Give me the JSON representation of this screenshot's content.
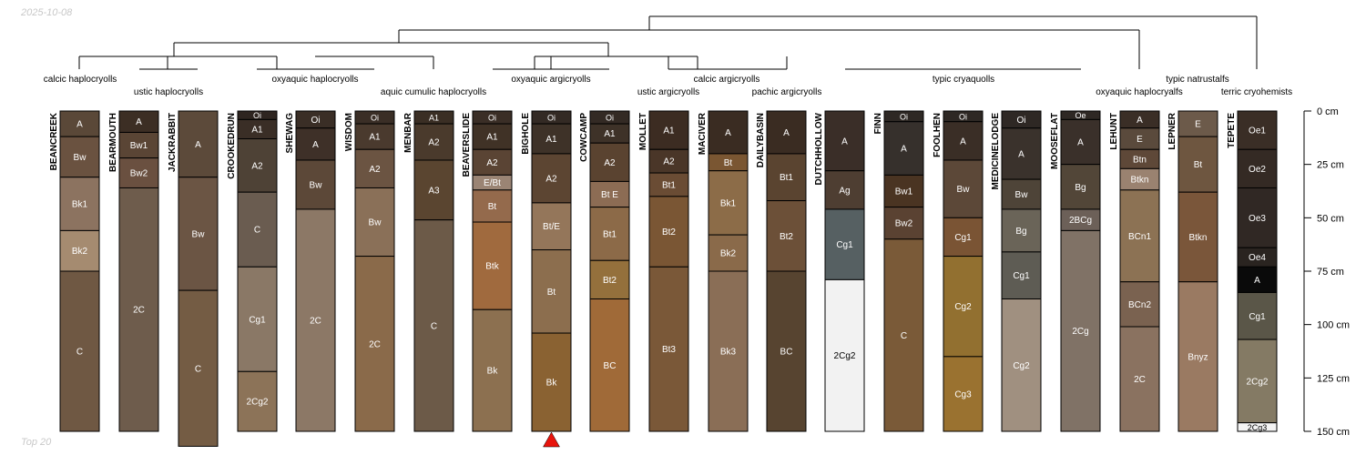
{
  "date_label": "2025-10-08",
  "footer_label": "Top 20",
  "chart_data": {
    "type": "soil-profile-sketch with dendrogram",
    "depth_axis": {
      "unit": "cm",
      "ticks": [
        0,
        25,
        50,
        75,
        100,
        125,
        150
      ],
      "tick_labels": [
        "0 cm",
        "25 cm",
        "50 cm",
        "75 cm",
        "100 cm",
        "125 cm",
        "150 cm"
      ],
      "range": [
        0,
        150
      ]
    },
    "groups": [
      {
        "label": "calcic haplocryolls"
      },
      {
        "label": "ustic haplocryolls"
      },
      {
        "label": "oxyaquic haplocryolls"
      },
      {
        "label": "aquic cumulic haplocryolls"
      },
      {
        "label": "oxyaquic argicryolls"
      },
      {
        "label": "ustic argicryolls"
      },
      {
        "label": "calcic argicryolls"
      },
      {
        "label": "pachic argicryolls"
      },
      {
        "label": "typic cryaquolls"
      },
      {
        "label": "oxyaquic haplocryalfs"
      },
      {
        "label": "typic natrustalfs"
      },
      {
        "label": "terric cryohemists"
      }
    ],
    "profiles": [
      {
        "name": "BEANCREEK",
        "horizons": [
          {
            "name": "A",
            "top": 0,
            "bottom": 12,
            "color": "#5a4838"
          },
          {
            "name": "Bw",
            "top": 12,
            "bottom": 31,
            "color": "#6a5240"
          },
          {
            "name": "Bk1",
            "top": 31,
            "bottom": 56,
            "color": "#8c7360"
          },
          {
            "name": "Bk2",
            "top": 56,
            "bottom": 75,
            "color": "#a58b70"
          },
          {
            "name": "C",
            "top": 75,
            "bottom": 150,
            "color": "#6f5843"
          }
        ]
      },
      {
        "name": "BEARMOUTH",
        "horizons": [
          {
            "name": "A",
            "top": 0,
            "bottom": 10,
            "color": "#3c2e24"
          },
          {
            "name": "Bw1",
            "top": 10,
            "bottom": 22,
            "color": "#5a4535"
          },
          {
            "name": "Bw2",
            "top": 22,
            "bottom": 36,
            "color": "#6a5040"
          },
          {
            "name": "2C",
            "top": 36,
            "bottom": 150,
            "color": "#6e5c4c"
          }
        ]
      },
      {
        "name": "JACKRABBIT",
        "horizons": [
          {
            "name": "A",
            "top": 0,
            "bottom": 31,
            "color": "#5c4a3a"
          },
          {
            "name": "Bw",
            "top": 31,
            "bottom": 84,
            "color": "#6b5544"
          },
          {
            "name": "C",
            "top": 84,
            "bottom": 157,
            "color": "#745c44"
          }
        ]
      },
      {
        "name": "CROOKEDRUN",
        "horizons": [
          {
            "name": "Oi",
            "top": 0,
            "bottom": 4,
            "color": "#2e2520"
          },
          {
            "name": "A1",
            "top": 4,
            "bottom": 13,
            "color": "#3a2e26"
          },
          {
            "name": "A2",
            "top": 13,
            "bottom": 38,
            "color": "#4e4236"
          },
          {
            "name": "C",
            "top": 38,
            "bottom": 73,
            "color": "#6a5c50"
          },
          {
            "name": "Cg1",
            "top": 73,
            "bottom": 122,
            "color": "#8a7866"
          },
          {
            "name": "2Cg2",
            "top": 122,
            "bottom": 150,
            "color": "#8c7358"
          }
        ]
      },
      {
        "name": "SHEWAG",
        "horizons": [
          {
            "name": "Oi",
            "top": 0,
            "bottom": 8,
            "color": "#3a2e26"
          },
          {
            "name": "A",
            "top": 8,
            "bottom": 23,
            "color": "#3e3028"
          },
          {
            "name": "Bw",
            "top": 23,
            "bottom": 46,
            "color": "#5c4838"
          },
          {
            "name": "2C",
            "top": 46,
            "bottom": 150,
            "color": "#8c7866"
          }
        ]
      },
      {
        "name": "WISDOM",
        "horizons": [
          {
            "name": "Oi",
            "top": 0,
            "bottom": 6,
            "color": "#3a2e26"
          },
          {
            "name": "A1",
            "top": 6,
            "bottom": 18,
            "color": "#4a3a2e"
          },
          {
            "name": "A2",
            "top": 18,
            "bottom": 36,
            "color": "#6b5442"
          },
          {
            "name": "Bw",
            "top": 36,
            "bottom": 68,
            "color": "#8a7058"
          },
          {
            "name": "2C",
            "top": 68,
            "bottom": 150,
            "color": "#8a6a4a"
          }
        ]
      },
      {
        "name": "MENBAR",
        "horizons": [
          {
            "name": "A1",
            "top": 0,
            "bottom": 6,
            "color": "#3a2e24"
          },
          {
            "name": "A2",
            "top": 6,
            "bottom": 23,
            "color": "#4a3a2c"
          },
          {
            "name": "A3",
            "top": 23,
            "bottom": 51,
            "color": "#5a4530"
          },
          {
            "name": "C",
            "top": 51,
            "bottom": 150,
            "color": "#6c5a48"
          }
        ]
      },
      {
        "name": "BEAVERSLIDE",
        "horizons": [
          {
            "name": "Oi",
            "top": 0,
            "bottom": 6,
            "color": "#3a2e26"
          },
          {
            "name": "A1",
            "top": 6,
            "bottom": 18,
            "color": "#403226"
          },
          {
            "name": "A2",
            "top": 18,
            "bottom": 30,
            "color": "#5a4434"
          },
          {
            "name": "E/Bt",
            "top": 30,
            "bottom": 37,
            "color": "#9a8474"
          },
          {
            "name": "Bt",
            "top": 37,
            "bottom": 52,
            "color": "#946a4c"
          },
          {
            "name": "Btk",
            "top": 52,
            "bottom": 93,
            "color": "#a06a3e"
          },
          {
            "name": "Bk",
            "top": 93,
            "bottom": 150,
            "color": "#8c7050"
          }
        ]
      },
      {
        "name": "BIGHOLE",
        "horizons": [
          {
            "name": "Oi",
            "top": 0,
            "bottom": 6,
            "color": "#332a24"
          },
          {
            "name": "A1",
            "top": 6,
            "bottom": 20,
            "color": "#3e3228"
          },
          {
            "name": "A2",
            "top": 20,
            "bottom": 43,
            "color": "#5c4532"
          },
          {
            "name": "Bt/E",
            "top": 43,
            "bottom": 65,
            "color": "#94765a"
          },
          {
            "name": "Bt",
            "top": 65,
            "bottom": 104,
            "color": "#8c6e4e"
          },
          {
            "name": "Bk",
            "top": 104,
            "bottom": 150,
            "color": "#8a6232"
          }
        ]
      },
      {
        "name": "COWCAMP",
        "horizons": [
          {
            "name": "Oi",
            "top": 0,
            "bottom": 6,
            "color": "#332a24"
          },
          {
            "name": "A1",
            "top": 6,
            "bottom": 15,
            "color": "#3e3228"
          },
          {
            "name": "A2",
            "top": 15,
            "bottom": 33,
            "color": "#5a4330"
          },
          {
            "name": "Bt E",
            "top": 33,
            "bottom": 45,
            "color": "#8c6c54"
          },
          {
            "name": "Bt1",
            "top": 45,
            "bottom": 70,
            "color": "#8c6a48"
          },
          {
            "name": "Bt2",
            "top": 70,
            "bottom": 88,
            "color": "#94703c"
          },
          {
            "name": "BC",
            "top": 88,
            "bottom": 150,
            "color": "#a06a38"
          }
        ]
      },
      {
        "name": "MOLLET",
        "horizons": [
          {
            "name": "A1",
            "top": 0,
            "bottom": 18,
            "color": "#3c2c22"
          },
          {
            "name": "A2",
            "top": 18,
            "bottom": 29,
            "color": "#4a3628"
          },
          {
            "name": "Bt1",
            "top": 29,
            "bottom": 40,
            "color": "#6a4c34"
          },
          {
            "name": "Bt2",
            "top": 40,
            "bottom": 73,
            "color": "#7a5634"
          },
          {
            "name": "Bt3",
            "top": 73,
            "bottom": 150,
            "color": "#7a5838"
          }
        ]
      },
      {
        "name": "MACIVER",
        "horizons": [
          {
            "name": "A",
            "top": 0,
            "bottom": 20,
            "color": "#3a2c22"
          },
          {
            "name": "Bt",
            "top": 20,
            "bottom": 28,
            "color": "#7a5632"
          },
          {
            "name": "Bk1",
            "top": 28,
            "bottom": 58,
            "color": "#8c6c48"
          },
          {
            "name": "Bk2",
            "top": 58,
            "bottom": 75,
            "color": "#8a6a4a"
          },
          {
            "name": "Bk3",
            "top": 75,
            "bottom": 150,
            "color": "#8a6e56"
          }
        ]
      },
      {
        "name": "DAILYBASIN",
        "horizons": [
          {
            "name": "A",
            "top": 0,
            "bottom": 20,
            "color": "#3a2c22"
          },
          {
            "name": "Bt1",
            "top": 20,
            "bottom": 42,
            "color": "#5a4430"
          },
          {
            "name": "Bt2",
            "top": 42,
            "bottom": 75,
            "color": "#6c5038"
          },
          {
            "name": "BC",
            "top": 75,
            "bottom": 150,
            "color": "#574430"
          }
        ]
      },
      {
        "name": "DUTCHHOLLOW",
        "horizons": [
          {
            "name": "A",
            "top": 0,
            "bottom": 28,
            "color": "#3a2e28"
          },
          {
            "name": "Ag",
            "top": 28,
            "bottom": 46,
            "color": "#4e3e32"
          },
          {
            "name": "Cg1",
            "top": 46,
            "bottom": 79,
            "color": "#566062"
          },
          {
            "name": "2Cg2",
            "top": 79,
            "bottom": 150,
            "color": "#f2f2f2"
          }
        ]
      },
      {
        "name": "FINN",
        "horizons": [
          {
            "name": "Oi",
            "top": 0,
            "bottom": 5,
            "color": "#2e2824"
          },
          {
            "name": "A",
            "top": 5,
            "bottom": 30,
            "color": "#36302c"
          },
          {
            "name": "Bw1",
            "top": 30,
            "bottom": 45,
            "color": "#4a3422"
          },
          {
            "name": "Bw2",
            "top": 45,
            "bottom": 60,
            "color": "#5a4232"
          },
          {
            "name": "C",
            "top": 60,
            "bottom": 150,
            "color": "#7a5a38"
          }
        ]
      },
      {
        "name": "FOOLHEN",
        "horizons": [
          {
            "name": "Oi",
            "top": 0,
            "bottom": 5,
            "color": "#2e2824"
          },
          {
            "name": "A",
            "top": 5,
            "bottom": 23,
            "color": "#3a2e26"
          },
          {
            "name": "Bw",
            "top": 23,
            "bottom": 50,
            "color": "#5c4838"
          },
          {
            "name": "Cg1",
            "top": 50,
            "bottom": 68,
            "color": "#7a5434"
          },
          {
            "name": "Cg2",
            "top": 68,
            "bottom": 115,
            "color": "#927030"
          },
          {
            "name": "Cg3",
            "top": 115,
            "bottom": 150,
            "color": "#9a7230"
          }
        ]
      },
      {
        "name": "MEDICINELODGE",
        "horizons": [
          {
            "name": "Oi",
            "top": 0,
            "bottom": 8,
            "color": "#2e2824"
          },
          {
            "name": "A",
            "top": 8,
            "bottom": 32,
            "color": "#3a322c"
          },
          {
            "name": "Bw",
            "top": 32,
            "bottom": 46,
            "color": "#4e4438"
          },
          {
            "name": "Bg",
            "top": 46,
            "bottom": 66,
            "color": "#6a6458"
          },
          {
            "name": "Cg1",
            "top": 66,
            "bottom": 88,
            "color": "#5e5c54"
          },
          {
            "name": "Cg2",
            "top": 88,
            "bottom": 150,
            "color": "#a09080"
          }
        ]
      },
      {
        "name": "MOOSEFLAT",
        "horizons": [
          {
            "name": "Oe",
            "top": 0,
            "bottom": 4,
            "color": "#2e2824"
          },
          {
            "name": "A",
            "top": 4,
            "bottom": 25,
            "color": "#3a302a"
          },
          {
            "name": "Bg",
            "top": 25,
            "bottom": 46,
            "color": "#524638"
          },
          {
            "name": "2BCg",
            "top": 46,
            "bottom": 56,
            "color": "#6c6058"
          },
          {
            "name": "2Cg",
            "top": 56,
            "bottom": 150,
            "color": "#807266"
          }
        ]
      },
      {
        "name": "LEHUNT",
        "horizons": [
          {
            "name": "A",
            "top": 0,
            "bottom": 8,
            "color": "#3a2e26"
          },
          {
            "name": "E",
            "top": 8,
            "bottom": 18,
            "color": "#5a4a3c"
          },
          {
            "name": "Btn",
            "top": 18,
            "bottom": 27,
            "color": "#5e4838"
          },
          {
            "name": "Btkn",
            "top": 27,
            "bottom": 37,
            "color": "#9a8270"
          },
          {
            "name": "BCn1",
            "top": 37,
            "bottom": 80,
            "color": "#8c7254"
          },
          {
            "name": "BCn2",
            "top": 80,
            "bottom": 101,
            "color": "#7a6250"
          },
          {
            "name": "2C",
            "top": 101,
            "bottom": 150,
            "color": "#8a7260"
          }
        ]
      },
      {
        "name": "LEPNER",
        "horizons": [
          {
            "name": "E",
            "top": 0,
            "bottom": 12,
            "color": "#6c5a4a"
          },
          {
            "name": "Bt",
            "top": 12,
            "bottom": 38,
            "color": "#6e5640"
          },
          {
            "name": "Btkn",
            "top": 38,
            "bottom": 80,
            "color": "#7a563a"
          },
          {
            "name": "Bnyz",
            "top": 80,
            "bottom": 150,
            "color": "#9a7a62"
          }
        ]
      },
      {
        "name": "TEPETE",
        "horizons": [
          {
            "name": "Oe1",
            "top": 0,
            "bottom": 18,
            "color": "#3a2e26"
          },
          {
            "name": "Oe2",
            "top": 18,
            "bottom": 36,
            "color": "#342a24"
          },
          {
            "name": "Oe3",
            "top": 36,
            "bottom": 64,
            "color": "#302824"
          },
          {
            "name": "Oe4",
            "top": 64,
            "bottom": 73,
            "color": "#2a2420"
          },
          {
            "name": "A",
            "top": 73,
            "bottom": 85,
            "color": "#0a0a0a"
          },
          {
            "name": "Cg1",
            "top": 85,
            "bottom": 107,
            "color": "#5a5648"
          },
          {
            "name": "2Cg2",
            "top": 107,
            "bottom": 146,
            "color": "#847a64"
          },
          {
            "name": "2Cg3",
            "top": 146,
            "bottom": 150,
            "color": "#f4f4f4"
          }
        ]
      }
    ],
    "marker": {
      "profile": "BIGHOLE",
      "shape": "triangle-up",
      "color": "#e8140c"
    }
  }
}
